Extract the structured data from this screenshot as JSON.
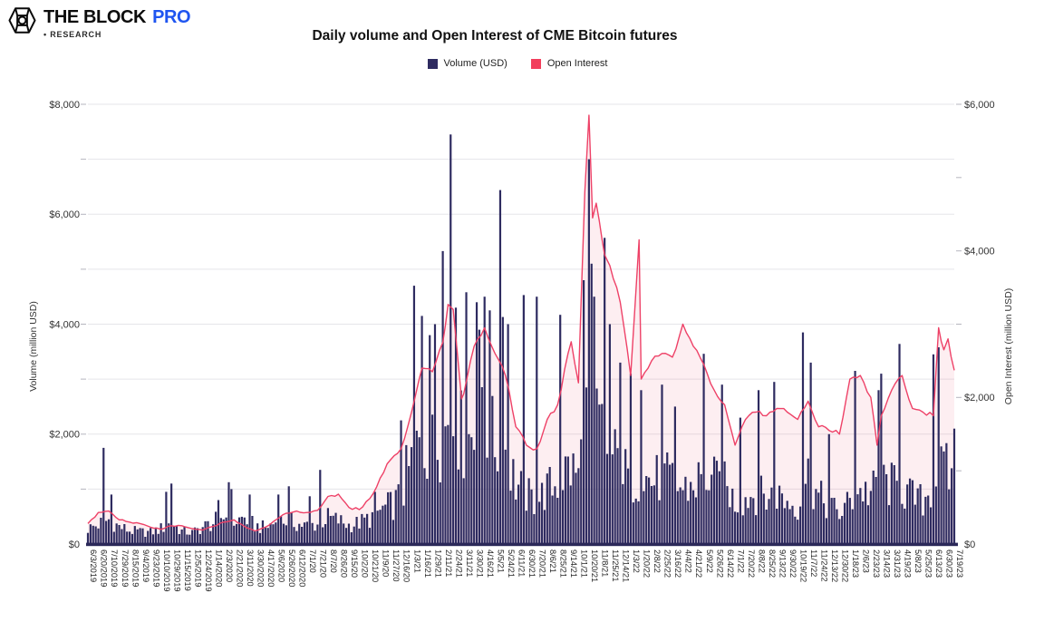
{
  "logo": {
    "brand": "THE BLOCK",
    "pro": "PRO",
    "research": "• RESEARCH"
  },
  "title": "Daily volume and Open Interest of CME Bitcoin futures",
  "legend": {
    "volume": "Volume (USD)",
    "open_interest": "Open Interest"
  },
  "colors": {
    "volume_bar": "#2e2b60",
    "oi_line": "#ee4167",
    "oi_swatch": "#f23e5c",
    "oi_fill": "rgba(238,65,103,0.09)",
    "grid": "#e5e5e9",
    "axis_tick": "#b6b6bf",
    "baseline": "#2b2859",
    "axis_text": "#333333",
    "logo_blue": "#1f55f0"
  },
  "chart_data": {
    "type": "combo",
    "note": "Dual-axis daily chart. Bar values are the typical daily level ($M) around each x label; spikes list notable single-day highs as [x_index, value]. Line values are Open Interest ($M, right axis) at each x label; extra_points add intra-interval features.",
    "categories": [
      "6/3/2019",
      "6/20/2019",
      "7/10/2019",
      "7/29/2019",
      "8/15/2019",
      "9/4/2019",
      "9/23/2019",
      "10/10/2019",
      "10/29/2019",
      "11/15/2019",
      "12/5/2019",
      "12/24/2019",
      "1/14/2020",
      "2/3/2020",
      "2/21/2020",
      "3/11/2020",
      "3/30/2020",
      "4/17/2020",
      "5/6/2020",
      "5/26/2020",
      "6/12/2020",
      "7/1/20",
      "7/21/20",
      "8/7/20",
      "8/26/20",
      "9/15/20",
      "10/2/20",
      "10/21/20",
      "11/9/20",
      "11/27/20",
      "12/16/20",
      "1/3/21",
      "1/16/21",
      "1/29/21",
      "2/11/21",
      "2/24/21",
      "3/11/21",
      "3/30/21",
      "4/16/21",
      "5/5/21",
      "5/24/21",
      "6/11/21",
      "6/30/21",
      "7/20/21",
      "8/6/21",
      "8/25/21",
      "9/14/21",
      "10/1/21",
      "10/20/21",
      "11/8/21",
      "11/25/21",
      "12/14/21",
      "1/3/22",
      "1/20/22",
      "2/8/22",
      "2/25/22",
      "3/16/22",
      "4/4/22",
      "4/21/22",
      "5/9/22",
      "5/26/22",
      "6/14/22",
      "7/1/22",
      "7/20/22",
      "8/8/22",
      "8/25/22",
      "9/13/22",
      "9/30/22",
      "10/19/22",
      "11/7/22",
      "11/24/22",
      "12/13/22",
      "12/30/22",
      "1/18/23",
      "2/6/23",
      "2/23/23",
      "3/14/23",
      "3/31/23",
      "4/19/23",
      "5/8/23",
      "5/25/23",
      "6/13/23",
      "6/30/23",
      "7/19/23"
    ],
    "series": [
      {
        "name": "Volume (USD)",
        "type": "bar",
        "axis": "left",
        "values": [
          380,
          480,
          600,
          430,
          330,
          300,
          290,
          380,
          520,
          320,
          280,
          420,
          520,
          700,
          550,
          650,
          450,
          400,
          550,
          600,
          500,
          450,
          500,
          650,
          580,
          470,
          520,
          640,
          820,
          950,
          1150,
          2000,
          2600,
          2400,
          2700,
          3100,
          2600,
          2700,
          2900,
          2500,
          2300,
          1500,
          1200,
          1050,
          1350,
          1500,
          1900,
          1700,
          3600,
          2900,
          2300,
          1900,
          1600,
          1700,
          1550,
          1650,
          1550,
          1350,
          1450,
          1750,
          1550,
          1450,
          1050,
          1150,
          1250,
          1150,
          1250,
          1050,
          950,
          1700,
          1150,
          950,
          750,
          1050,
          1350,
          1250,
          1550,
          1450,
          1350,
          1150,
          1050,
          1500,
          1850,
          1550
        ],
        "spikes": [
          [
            1.55,
            1750
          ],
          [
            2.2,
            900
          ],
          [
            7.6,
            950
          ],
          [
            8.0,
            1100
          ],
          [
            12.5,
            800
          ],
          [
            13.6,
            1125
          ],
          [
            13.8,
            1000
          ],
          [
            15.5,
            900
          ],
          [
            18.3,
            900
          ],
          [
            19.3,
            1050
          ],
          [
            21.3,
            870
          ],
          [
            22.3,
            1350
          ],
          [
            27.5,
            950
          ],
          [
            30.0,
            2250
          ],
          [
            30.4,
            1800
          ],
          [
            31.3,
            4700
          ],
          [
            32.0,
            4150
          ],
          [
            32.8,
            3800
          ],
          [
            33.2,
            4000
          ],
          [
            34.1,
            5330
          ],
          [
            34.8,
            7450
          ],
          [
            35.3,
            4300
          ],
          [
            36.3,
            4580
          ],
          [
            37.2,
            4400
          ],
          [
            37.6,
            3900
          ],
          [
            38.0,
            4500
          ],
          [
            38.5,
            4250
          ],
          [
            39.4,
            6440
          ],
          [
            39.7,
            4130
          ],
          [
            40.2,
            4000
          ],
          [
            41.7,
            4530
          ],
          [
            43.0,
            4500
          ],
          [
            45.2,
            4170
          ],
          [
            47.5,
            4800
          ],
          [
            47.9,
            7000
          ],
          [
            48.2,
            5100
          ],
          [
            48.5,
            4500
          ],
          [
            49.4,
            5570
          ],
          [
            50.0,
            4000
          ],
          [
            51.0,
            3300
          ],
          [
            51.9,
            3100
          ],
          [
            53.1,
            2800
          ],
          [
            55.1,
            2900
          ],
          [
            56.2,
            2500
          ],
          [
            58.9,
            3460
          ],
          [
            60.8,
            2900
          ],
          [
            62.5,
            2300
          ],
          [
            64.2,
            2800
          ],
          [
            65.8,
            2950
          ],
          [
            68.6,
            3850
          ],
          [
            69.2,
            3300
          ],
          [
            71.1,
            2000
          ],
          [
            73.6,
            3150
          ],
          [
            75.8,
            2800
          ],
          [
            76.1,
            3100
          ],
          [
            77.8,
            3640
          ],
          [
            80.9,
            3450
          ],
          [
            81.5,
            3580
          ],
          [
            83.0,
            2100
          ]
        ]
      },
      {
        "name": "Open Interest",
        "type": "line",
        "axis": "right",
        "values": [
          280,
          430,
          450,
          330,
          300,
          280,
          230,
          200,
          250,
          250,
          210,
          190,
          240,
          300,
          330,
          240,
          180,
          230,
          330,
          420,
          450,
          430,
          460,
          650,
          680,
          500,
          470,
          620,
          900,
          1150,
          1300,
          1800,
          2400,
          2350,
          2750,
          3200,
          2050,
          2700,
          2950,
          2600,
          2300,
          1600,
          1350,
          1300,
          1700,
          1900,
          2600,
          2200,
          5850,
          4400,
          3800,
          3300,
          2300,
          2250,
          2500,
          2600,
          2550,
          3000,
          2700,
          2450,
          2100,
          1900,
          1350,
          1700,
          1800,
          1750,
          1850,
          1800,
          1700,
          1950,
          1600,
          1550,
          1500,
          2250,
          2300,
          2000,
          1750,
          2100,
          2300,
          1850,
          1800,
          1750,
          2650,
          2370
        ],
        "extra_points": [
          [
            34.5,
            3270
          ],
          [
            35.8,
            1980
          ],
          [
            46.3,
            2760
          ],
          [
            47.6,
            4800
          ],
          [
            48.35,
            4450
          ],
          [
            48.7,
            4650
          ],
          [
            49.5,
            3950
          ],
          [
            52.8,
            4150
          ],
          [
            75.6,
            1350
          ],
          [
            81.5,
            2950
          ],
          [
            82.4,
            2800
          ]
        ]
      }
    ],
    "left_axis": {
      "title": "Volume (million USD)",
      "range": [
        0,
        8000
      ],
      "tick_labels": [
        "$8,000",
        "$6,000",
        "$4,000",
        "$2,000",
        "$0"
      ],
      "tick_values": [
        8000,
        6000,
        4000,
        2000,
        0
      ],
      "gridline_step": 1000
    },
    "right_axis": {
      "title": "Open Interest (million USD)",
      "range": [
        0,
        6000
      ],
      "tick_labels": [
        "$6,000",
        "$4,000",
        "$2,000",
        "$0"
      ],
      "tick_values": [
        6000,
        4000,
        2000,
        0
      ]
    },
    "grid": "horizontal gridlines every $1,000 (left scale)",
    "legend_position": "top center"
  }
}
